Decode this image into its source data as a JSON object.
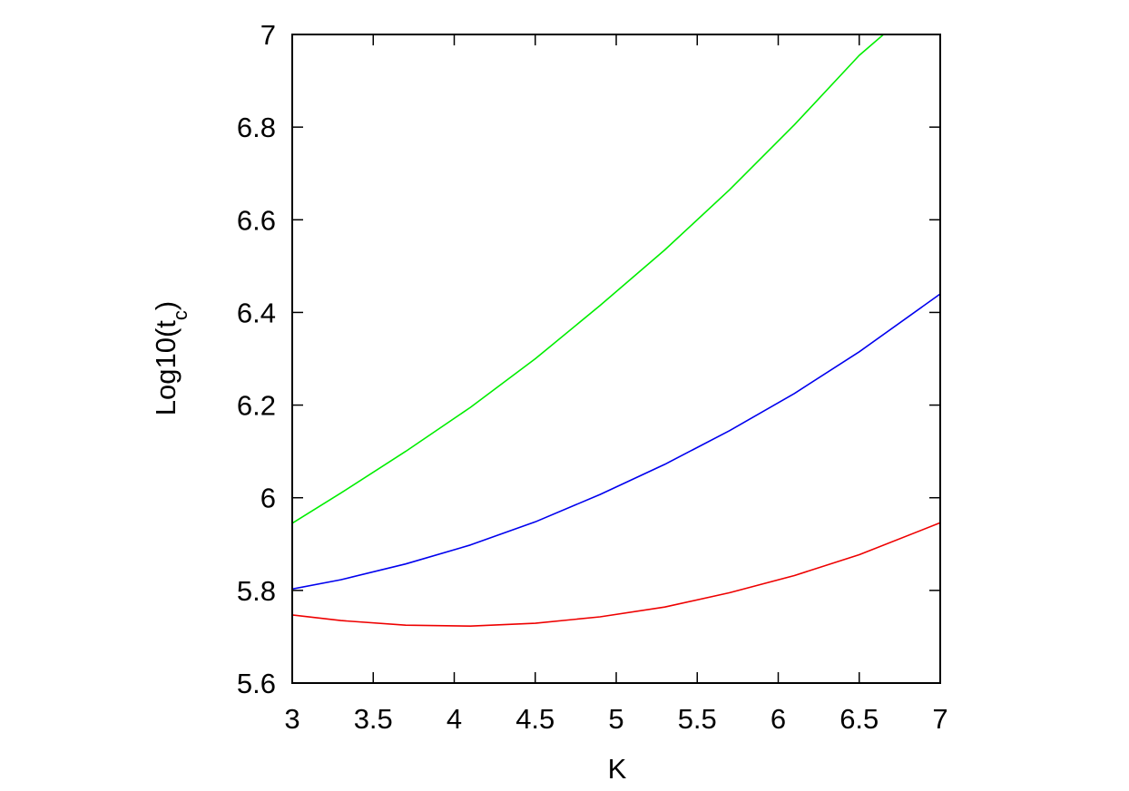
{
  "chart_data": {
    "type": "line",
    "title": "",
    "xlabel": "K",
    "ylabel_main": "Log10(t",
    "ylabel_sub": "c",
    "ylabel_close": ")",
    "xlim": [
      3,
      7
    ],
    "ylim": [
      5.6,
      7
    ],
    "xticks": [
      "3",
      "3.5",
      "4",
      "4.5",
      "5",
      "5.5",
      "6",
      "6.5",
      "7"
    ],
    "yticks": [
      "5.6",
      "5.8",
      "6",
      "6.2",
      "6.4",
      "6.6",
      "6.8",
      "7"
    ],
    "grid": false,
    "legend": "none",
    "series": [
      {
        "color": "#00ee00",
        "x": [
          3.0,
          3.3,
          3.7,
          4.1,
          4.5,
          4.9,
          5.3,
          5.7,
          6.1,
          6.5,
          6.65
        ],
        "y": [
          5.945,
          6.01,
          6.1,
          6.195,
          6.3,
          6.415,
          6.535,
          6.665,
          6.805,
          6.955,
          7.0
        ]
      },
      {
        "color": "#0000ee",
        "x": [
          3.0,
          3.3,
          3.7,
          4.1,
          4.5,
          4.9,
          5.3,
          5.7,
          6.1,
          6.5,
          7.0
        ],
        "y": [
          5.803,
          5.823,
          5.857,
          5.898,
          5.948,
          6.007,
          6.072,
          6.145,
          6.225,
          6.315,
          6.44
        ]
      },
      {
        "color": "#ee0000",
        "x": [
          3.0,
          3.3,
          3.7,
          4.1,
          4.5,
          4.9,
          5.3,
          5.7,
          6.1,
          6.5,
          7.0
        ],
        "y": [
          5.747,
          5.735,
          5.725,
          5.723,
          5.729,
          5.743,
          5.764,
          5.795,
          5.832,
          5.877,
          5.946
        ]
      }
    ]
  }
}
